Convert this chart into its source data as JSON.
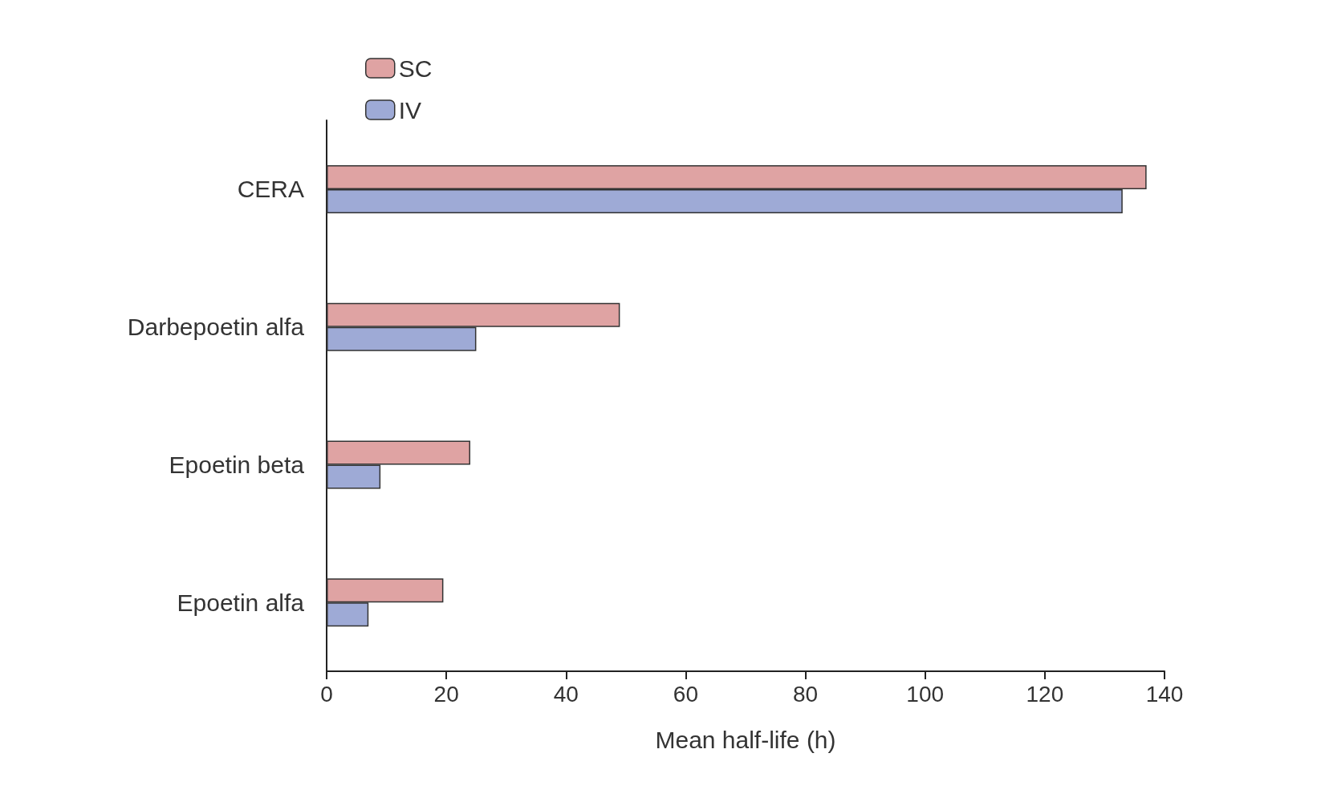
{
  "chart_data": {
    "type": "bar",
    "orientation": "horizontal",
    "xlabel": "Mean half-life (h)",
    "categories": [
      "CERA",
      "Darbepoetin alfa",
      "Epoetin beta",
      "Epoetin alfa"
    ],
    "series": [
      {
        "name": "SC",
        "color": "#dfa3a3",
        "values": [
          137,
          49,
          24,
          19.5
        ]
      },
      {
        "name": "IV",
        "color": "#9eaad6",
        "values": [
          133,
          25,
          9,
          7
        ]
      }
    ],
    "xlim": [
      0,
      140
    ],
    "xticks": [
      0,
      20,
      40,
      60,
      80,
      100,
      120,
      140
    ],
    "grid": false,
    "legend": "top left"
  }
}
